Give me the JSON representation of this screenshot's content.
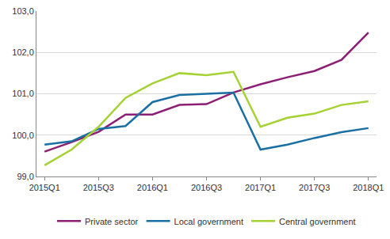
{
  "chart_data": {
    "type": "line",
    "categories": [
      "2015Q1",
      null,
      "2015Q3",
      null,
      "2016Q1",
      null,
      "2016Q3",
      null,
      "2017Q1",
      null,
      "2017Q3",
      null,
      "2018Q1"
    ],
    "series": [
      {
        "name": "Private sector",
        "color": "#8c1f73",
        "values": [
          99.6,
          99.83,
          100.08,
          100.5,
          100.5,
          100.73,
          100.75,
          101.03,
          101.23,
          101.4,
          101.55,
          101.82,
          102.48
        ]
      },
      {
        "name": "Local government",
        "color": "#1a6fa3",
        "values": [
          99.77,
          99.85,
          100.15,
          100.22,
          100.8,
          100.97,
          101.0,
          101.03,
          99.65,
          99.77,
          99.93,
          100.07,
          100.17
        ]
      },
      {
        "name": "Central government",
        "color": "#a4d233",
        "values": [
          99.27,
          99.65,
          100.2,
          100.9,
          101.25,
          101.5,
          101.45,
          101.53,
          100.2,
          100.42,
          100.52,
          100.73,
          100.82
        ]
      }
    ],
    "ylim": [
      99,
      103
    ],
    "yticks": [
      {
        "value": 99,
        "label": "99,0"
      },
      {
        "value": 100,
        "label": "100,0"
      },
      {
        "value": 101,
        "label": "101,0"
      },
      {
        "value": 102,
        "label": "102,0"
      },
      {
        "value": 103,
        "label": "103,0"
      }
    ],
    "grid": true,
    "legend": "bottom"
  }
}
